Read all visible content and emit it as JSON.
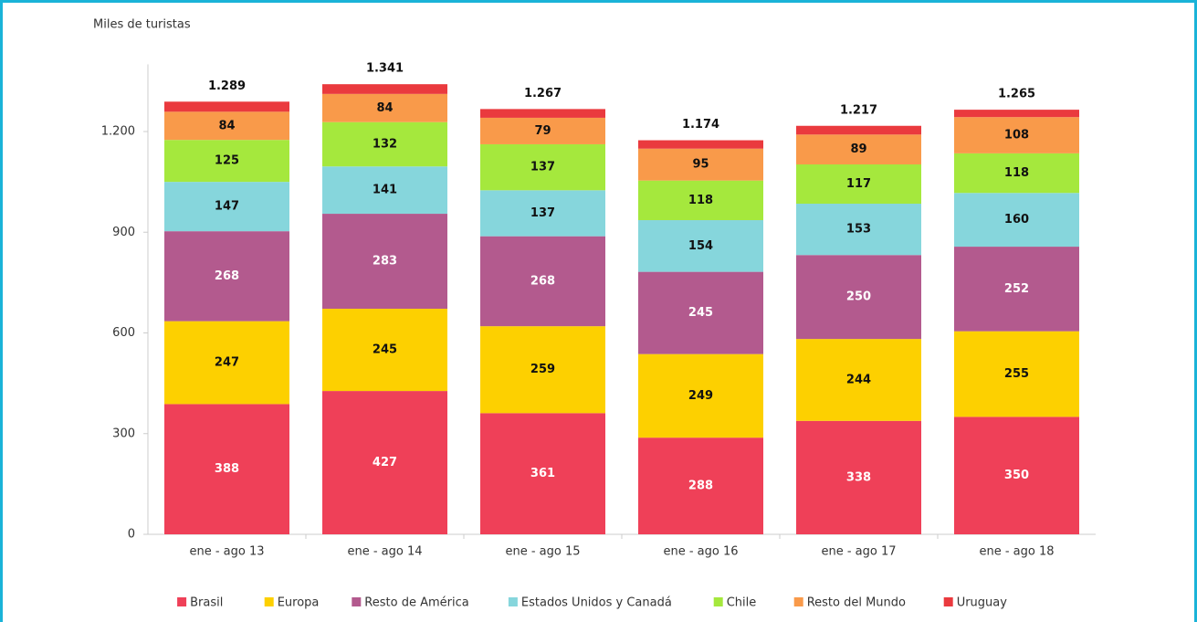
{
  "chart_data": {
    "type": "stacked-bar",
    "ylabel": "Miles de turistas",
    "categories": [
      "ene - ago 13",
      "ene - ago 14",
      "ene - ago 15",
      "ene - ago 16",
      "ene - ago 17",
      "ene - ago 18"
    ],
    "series": [
      {
        "name": "Brasil",
        "color": "#ef4058",
        "label_color": "#ffffff",
        "data_labels": true,
        "values": [
          388,
          427,
          361,
          288,
          338,
          350
        ]
      },
      {
        "name": "Europa",
        "color": "#fdd000",
        "label_color": "#111111",
        "data_labels": true,
        "values": [
          247,
          245,
          259,
          249,
          244,
          255
        ]
      },
      {
        "name": "Resto de América",
        "color": "#b35a8e",
        "label_color": "#ffffff",
        "data_labels": true,
        "values": [
          268,
          283,
          268,
          245,
          250,
          252
        ]
      },
      {
        "name": "Estados Unidos y Canadá",
        "color": "#86d6dc",
        "label_color": "#111111",
        "data_labels": true,
        "values": [
          147,
          141,
          137,
          154,
          153,
          160
        ]
      },
      {
        "name": "Chile",
        "color": "#a5e83d",
        "label_color": "#111111",
        "data_labels": true,
        "values": [
          125,
          132,
          137,
          118,
          117,
          118
        ]
      },
      {
        "name": "Resto del Mundo",
        "color": "#f99a4a",
        "label_color": "#111111",
        "data_labels": true,
        "values": [
          84,
          84,
          79,
          95,
          89,
          108
        ]
      },
      {
        "name": "Uruguay",
        "color": "#ea3a3e",
        "label_color": "#111111",
        "data_labels": false,
        "values": [
          30,
          29,
          26,
          25,
          26,
          22
        ]
      }
    ],
    "totals": {
      "values": [
        1289,
        1341,
        1267,
        1174,
        1217,
        1265
      ],
      "value_labels": [
        "1.289",
        "1.341",
        "1.267",
        "1.174",
        "1.217",
        "1.265"
      ]
    },
    "ylim": [
      0,
      1400
    ],
    "yticks": [
      0,
      300,
      600,
      900,
      {
        "value": 1200,
        "label": "1.200"
      }
    ],
    "grid": false,
    "legend": "bottom"
  }
}
